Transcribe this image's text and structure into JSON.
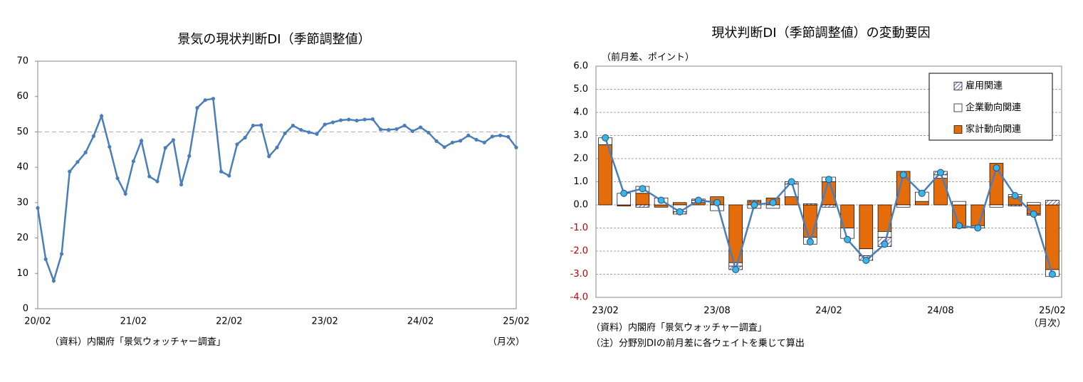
{
  "chart_data": [
    {
      "type": "line",
      "title": "景気の現状判断DI（季節調整値）",
      "categories": [
        "20/02",
        null,
        null,
        null,
        null,
        null,
        null,
        null,
        null,
        null,
        null,
        null,
        "21/02",
        null,
        null,
        null,
        null,
        null,
        null,
        null,
        null,
        null,
        null,
        null,
        "22/02",
        null,
        null,
        null,
        null,
        null,
        null,
        null,
        null,
        null,
        null,
        null,
        "23/02",
        null,
        null,
        null,
        null,
        null,
        null,
        null,
        null,
        null,
        null,
        null,
        "24/02",
        null,
        null,
        null,
        null,
        null,
        null,
        null,
        null,
        null,
        null,
        null,
        "25/02"
      ],
      "values": [
        28.5,
        14.0,
        7.9,
        15.5,
        38.8,
        41.5,
        44.2,
        48.8,
        54.5,
        45.8,
        36.9,
        32.5,
        41.7,
        47.5,
        37.4,
        36.0,
        45.5,
        47.7,
        35.1,
        43.2,
        56.8,
        59.0,
        59.4,
        38.8,
        37.6,
        46.5,
        48.4,
        51.8,
        51.9,
        43.1,
        45.6,
        49.6,
        51.8,
        50.6,
        49.9,
        49.4,
        52.1,
        52.7,
        53.3,
        53.5,
        53.2,
        53.5,
        53.6,
        50.7,
        50.6,
        50.8,
        51.8,
        50.2,
        51.3,
        49.8,
        47.4,
        45.7,
        47.0,
        47.5,
        49.0,
        47.8,
        47.0,
        48.7,
        49.0,
        48.6,
        45.6
      ],
      "color": "#4a7ebb",
      "ylim": [
        0,
        70
      ],
      "yticks": [
        0,
        10,
        20,
        30,
        40,
        50,
        60,
        70
      ],
      "reference_line": 50,
      "grid": false,
      "notes": [
        "（資料）内閣府「景気ウォッチャー調査」"
      ],
      "x_unit": "（月次）"
    },
    {
      "type": "bar",
      "title": "現状判断DI（季節調整値）の変動要因",
      "y_label": "（前月差、ポイント）",
      "categories": [
        "23/02",
        null,
        null,
        null,
        null,
        null,
        "23/08",
        null,
        null,
        null,
        null,
        null,
        "24/02",
        null,
        null,
        null,
        null,
        null,
        "24/08",
        null,
        null,
        null,
        null,
        null,
        "25/02"
      ],
      "series": [
        {
          "name": "家計動向関連",
          "color": "#e46c0a",
          "values": [
            2.6,
            -0.05,
            0.5,
            -0.1,
            0.1,
            0.1,
            0.35,
            -2.5,
            0.15,
            0.3,
            0.35,
            -1.4,
            1.0,
            -1.0,
            -1.9,
            -1.15,
            1.45,
            0.15,
            1.15,
            -1.0,
            -0.9,
            1.8,
            0.35,
            -0.4,
            -2.8
          ]
        },
        {
          "name": "企業動向関連",
          "color": "#ffffff",
          "values": [
            0.3,
            0.5,
            0.3,
            0.3,
            -0.3,
            0.1,
            -0.25,
            -0.15,
            -0.15,
            -0.15,
            0.55,
            -0.3,
            0.2,
            -0.45,
            -0.3,
            -0.25,
            -0.1,
            0.4,
            0.15,
            0.15,
            -0.1,
            -0.1,
            0.1,
            0.1,
            -0.3
          ]
        },
        {
          "name": "雇用関連",
          "color": "#7f6fbf",
          "pattern": "hatch",
          "values": [
            0.0,
            0.0,
            -0.1,
            0.0,
            -0.1,
            0.05,
            0.0,
            -0.15,
            0.05,
            0.0,
            0.1,
            0.05,
            -0.1,
            0.0,
            -0.2,
            -0.4,
            0.0,
            0.0,
            0.15,
            0.0,
            0.0,
            0.0,
            -0.05,
            -0.05,
            0.2
          ]
        }
      ],
      "line": {
        "color": "#4a7ebb",
        "marker_color": "#3cb4e6",
        "values": [
          2.9,
          0.5,
          0.7,
          0.2,
          -0.3,
          0.2,
          0.1,
          -2.8,
          0.0,
          0.1,
          1.0,
          -1.6,
          1.1,
          -1.5,
          -2.4,
          -1.7,
          1.3,
          0.5,
          1.4,
          -0.9,
          -1.0,
          1.6,
          0.4,
          -0.4,
          -3.0
        ]
      },
      "ylim": [
        -4,
        6
      ],
      "yticks": [
        {
          "value": -4,
          "label": "-4.0"
        },
        {
          "value": -3,
          "label": "-3.0"
        },
        {
          "value": -2,
          "label": "-2.0"
        },
        {
          "value": -1,
          "label": "-1.0"
        },
        {
          "value": 0,
          "label": "0.0"
        },
        {
          "value": 1,
          "label": "1.0"
        },
        {
          "value": 2,
          "label": "2.0"
        },
        {
          "value": 3,
          "label": "3.0"
        },
        {
          "value": 4,
          "label": "4.0"
        },
        {
          "value": 5,
          "label": "5.0"
        },
        {
          "value": 6,
          "label": "6.0"
        }
      ],
      "negative_tick_color": "#c00000",
      "grid": true,
      "legend": "upper right",
      "notes": [
        "（資料）内閣府「景気ウォッチャー調査」",
        "（注）分野別DIの前月差に各ウェイトを乗じて算出"
      ],
      "x_unit": "（月次）"
    }
  ]
}
